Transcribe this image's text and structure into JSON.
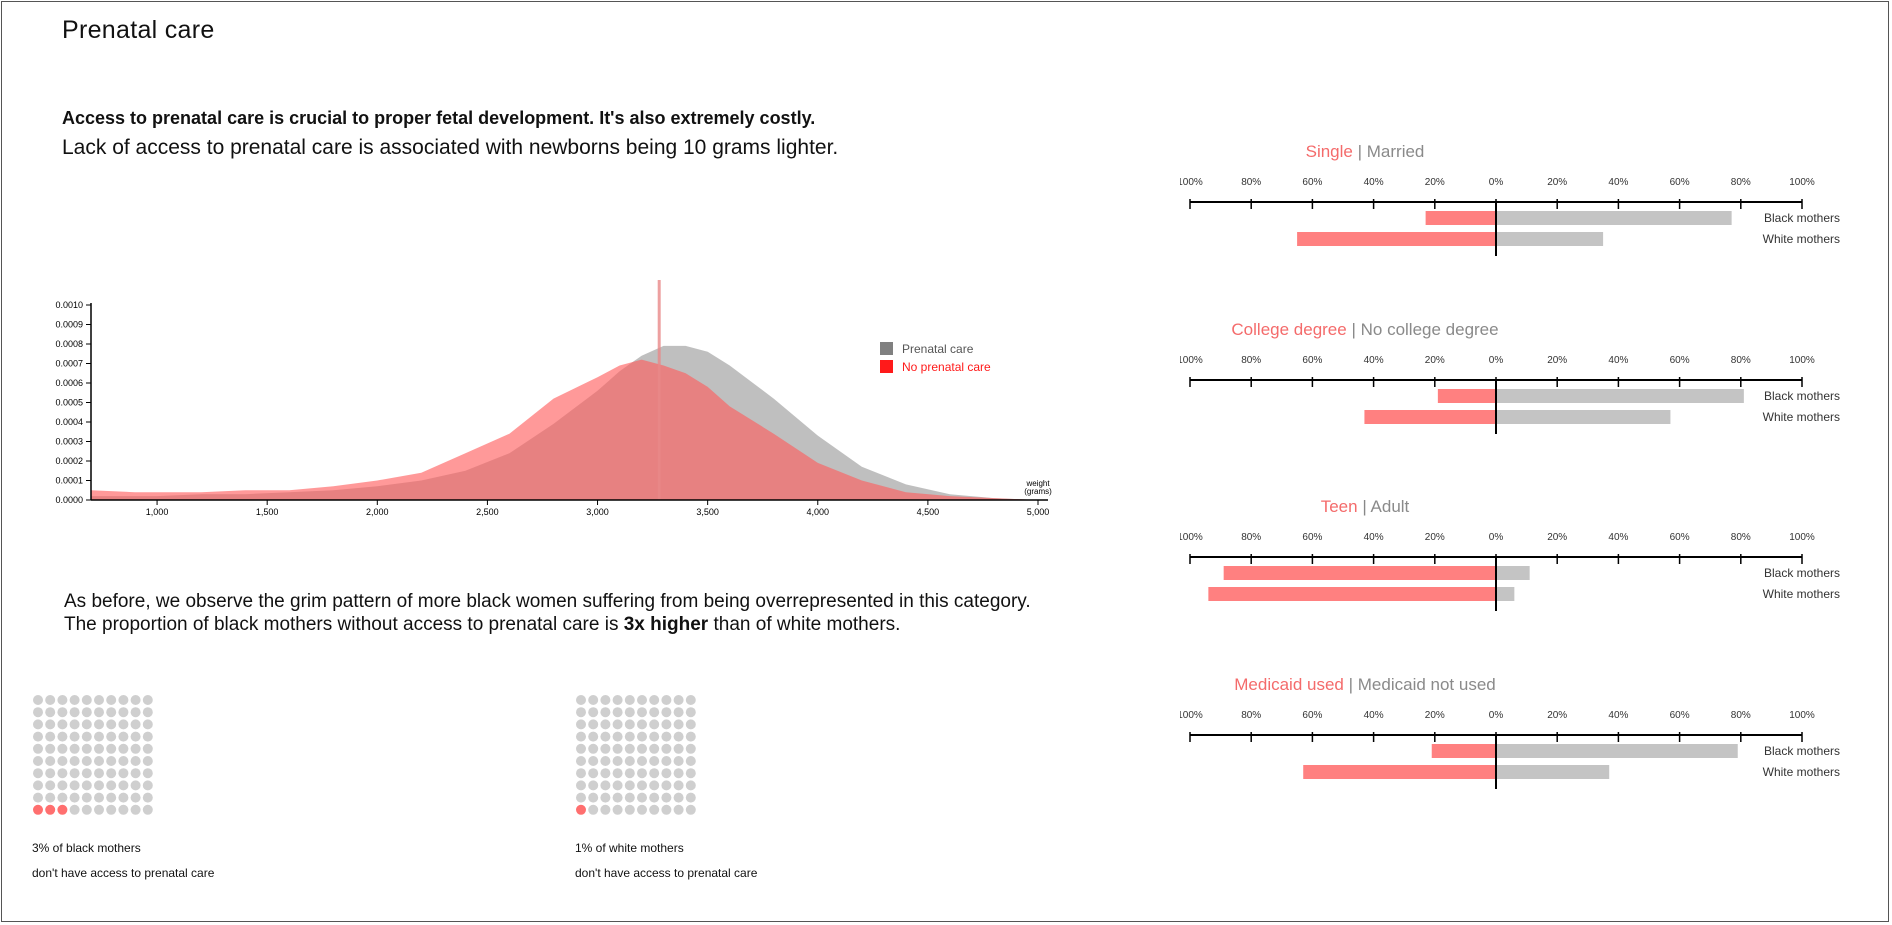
{
  "page_title": "Prenatal care",
  "intro": {
    "bold": "Access to prenatal care is crucial to proper fetal development. It's also extremely costly.",
    "text": "Lack of access to prenatal care is associated with newborns being 10 grams lighter."
  },
  "pattern": {
    "line1": "As before, we observe the grim pattern of more black women suffering from being overrepresented in this category.",
    "line2_pre": "The proportion of black mothers without access to prenatal care is ",
    "line2_bold": "3x higher",
    "line2_post": " than of white mothers."
  },
  "colors": {
    "red": "#ff5a5a",
    "gray": "#9e9e9e",
    "bar_red": "#ff8080",
    "bar_gray": "#c4c4c4",
    "dot_gray": "#cfcfcf"
  },
  "chart_data": [
    {
      "type": "area",
      "xlabel": "weight\n(grams)",
      "xlim": [
        700,
        5000
      ],
      "ylim": [
        0,
        0.001
      ],
      "x_ticks": [
        "1,000",
        "1,500",
        "2,000",
        "2,500",
        "3,000",
        "3,500",
        "4,000",
        "4,500",
        "5,000"
      ],
      "y_ticks": [
        "0.0000",
        "0.0001",
        "0.0002",
        "0.0003",
        "0.0004",
        "0.0005",
        "0.0006",
        "0.0007",
        "0.0008",
        "0.0009",
        "0.0010"
      ],
      "marker_x": 3280,
      "legend_position": "top-right",
      "x": [
        700,
        900,
        1000,
        1200,
        1400,
        1600,
        1800,
        2000,
        2200,
        2400,
        2600,
        2800,
        3000,
        3100,
        3200,
        3300,
        3400,
        3500,
        3600,
        3800,
        4000,
        4200,
        4400,
        4600,
        4800,
        5000
      ],
      "series": [
        {
          "name": "Prenatal care",
          "color": "#808080",
          "values": [
            2e-05,
            2e-05,
            2e-05,
            3e-05,
            3e-05,
            4e-05,
            5e-05,
            7e-05,
            0.0001,
            0.00015,
            0.00024,
            0.00039,
            0.00056,
            0.00066,
            0.00074,
            0.00079,
            0.00079,
            0.00076,
            0.00069,
            0.00052,
            0.00033,
            0.00017,
            8e-05,
            3e-05,
            1e-05,
            0.0
          ]
        },
        {
          "name": "No prenatal care",
          "color": "#ff2020",
          "values": [
            5e-05,
            4e-05,
            4e-05,
            4e-05,
            5e-05,
            5e-05,
            7e-05,
            0.0001,
            0.00014,
            0.00024,
            0.00034,
            0.00052,
            0.00063,
            0.00069,
            0.00072,
            0.00069,
            0.00065,
            0.00058,
            0.00048,
            0.00034,
            0.00019,
            0.0001,
            4e-05,
            2e-05,
            1e-05,
            0.0
          ]
        }
      ]
    },
    {
      "type": "bar",
      "orientation": "diverging",
      "left_label": "Single",
      "sep": "|",
      "right_label": "Married",
      "ticks": [
        "100%",
        "80%",
        "60%",
        "40%",
        "20%",
        "0%",
        "20%",
        "40%",
        "60%",
        "80%",
        "100%"
      ],
      "categories": [
        "Black mothers",
        "White mothers"
      ],
      "left_values": [
        23,
        65
      ],
      "right_values": [
        77,
        35
      ]
    },
    {
      "type": "bar",
      "orientation": "diverging",
      "left_label": "College degree",
      "sep": "|",
      "right_label": "No college degree",
      "ticks": [
        "100%",
        "80%",
        "60%",
        "40%",
        "20%",
        "0%",
        "20%",
        "40%",
        "60%",
        "80%",
        "100%"
      ],
      "categories": [
        "Black mothers",
        "White mothers"
      ],
      "left_values": [
        19,
        43
      ],
      "right_values": [
        81,
        57
      ]
    },
    {
      "type": "bar",
      "orientation": "diverging",
      "left_label": "Teen",
      "sep": "|",
      "right_label": "Adult",
      "ticks": [
        "100%",
        "80%",
        "60%",
        "40%",
        "20%",
        "0%",
        "20%",
        "40%",
        "60%",
        "80%",
        "100%"
      ],
      "categories": [
        "Black mothers",
        "White mothers"
      ],
      "left_values": [
        89,
        94
      ],
      "right_values": [
        11,
        6
      ]
    },
    {
      "type": "bar",
      "orientation": "diverging",
      "left_label": "Medicaid used",
      "sep": "|",
      "right_label": "Medicaid not used",
      "ticks": [
        "100%",
        "80%",
        "60%",
        "40%",
        "20%",
        "0%",
        "20%",
        "40%",
        "60%",
        "80%",
        "100%"
      ],
      "categories": [
        "Black mothers",
        "White mothers"
      ],
      "left_values": [
        21,
        63
      ],
      "right_values": [
        79,
        37
      ]
    }
  ],
  "waffles": [
    {
      "highlighted": 3,
      "total": 100,
      "caption_line1": "3% of black mothers",
      "caption_line2": "don't have access to prenatal care"
    },
    {
      "highlighted": 1,
      "total": 100,
      "caption_line1": "1% of white mothers",
      "caption_line2": "don't have access to prenatal care"
    }
  ]
}
